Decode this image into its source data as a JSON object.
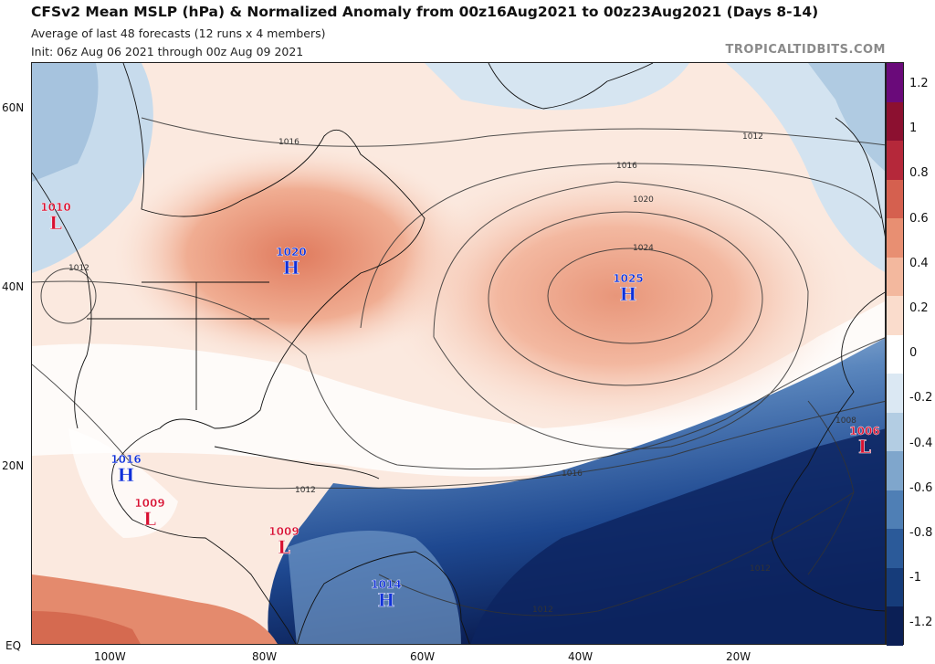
{
  "header": {
    "title": "CFSv2 Mean MSLP (hPa) & Normalized Anomaly from 00z16Aug2021 to 00z23Aug2021 (Days 8-14)",
    "line2": "Average of last 48 forecasts (12 runs x 4 members)",
    "line3": "Init: 06z Aug 06 2021 through 00z Aug 09 2021",
    "brand": "TROPICALTIDBITS.COM"
  },
  "axes": {
    "lat": [
      "60N",
      "40N",
      "20N",
      "EQ"
    ],
    "lon": [
      "100W",
      "80W",
      "60W",
      "40W",
      "20W"
    ]
  },
  "colorbar": {
    "labels": [
      "1.2",
      "1",
      "0.8",
      "0.6",
      "0.4",
      "0.2",
      "0",
      "-0.2",
      "-0.4",
      "-0.6",
      "-0.8",
      "-1",
      "-1.2"
    ],
    "colors": [
      "#6a0a7a",
      "#8c1030",
      "#b5283a",
      "#d5604f",
      "#e88f72",
      "#f3b89e",
      "#fadccc",
      "#ffffff",
      "#dbe8f3",
      "#b3cde3",
      "#7fa6cc",
      "#4f7fb5",
      "#2b5a99",
      "#163c7a",
      "#0b1f55"
    ]
  },
  "pressure_centers": [
    {
      "type": "L",
      "value": "1010"
    },
    {
      "type": "H",
      "value": "1020"
    },
    {
      "type": "H",
      "value": "1025"
    },
    {
      "type": "H",
      "value": "1016"
    },
    {
      "type": "L",
      "value": "1009"
    },
    {
      "type": "L",
      "value": "1009"
    },
    {
      "type": "H",
      "value": "1014"
    },
    {
      "type": "L",
      "value": "1006"
    }
  ],
  "contour_labels": [
    "1012",
    "1016",
    "1020",
    "1024",
    "1016",
    "1012",
    "1016",
    "1012",
    "1012",
    "1008",
    "1012",
    "1012"
  ]
}
